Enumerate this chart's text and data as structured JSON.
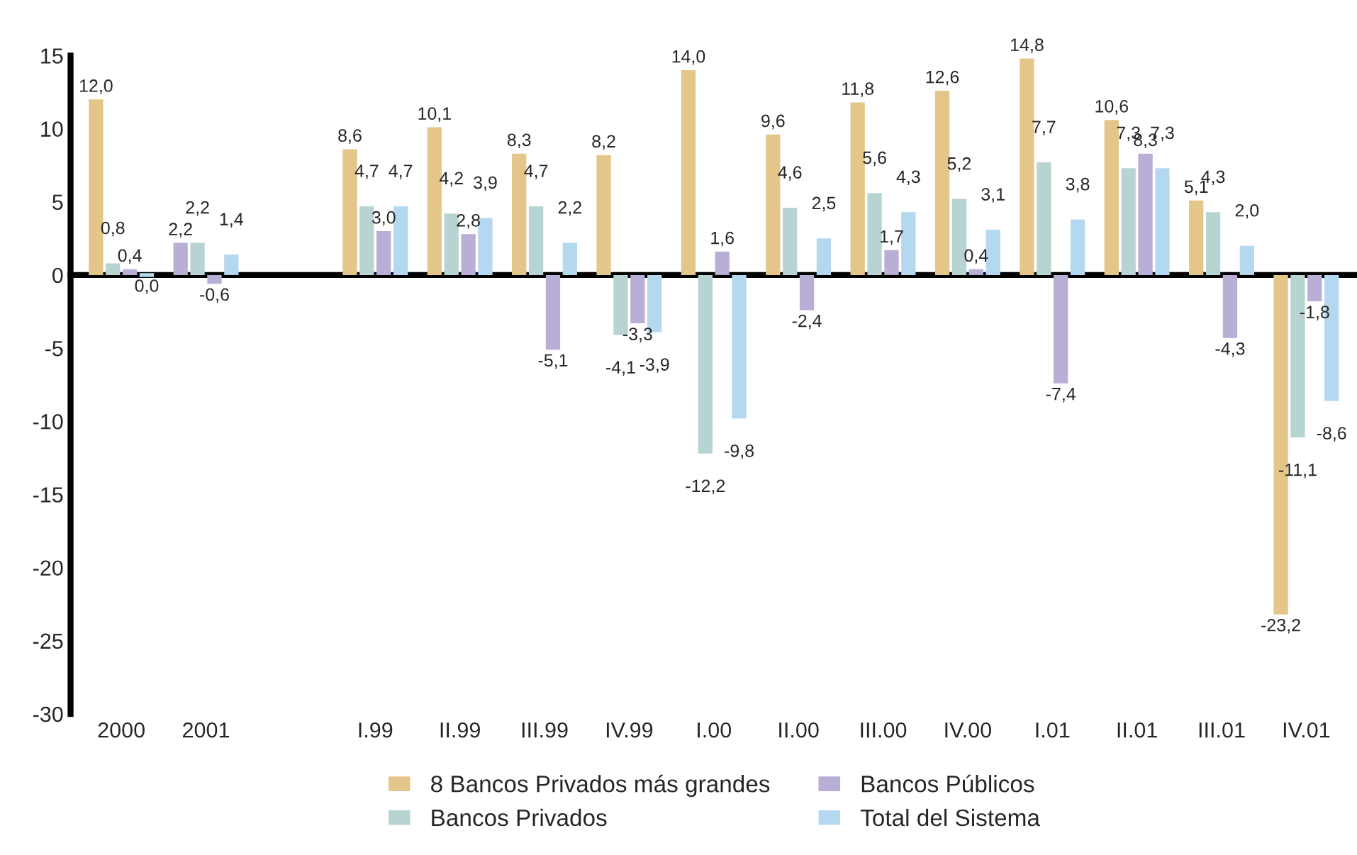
{
  "chart_data": {
    "type": "bar",
    "categories": [
      "2000",
      "2001",
      null,
      "I.99",
      "II.99",
      "III.99",
      "IV.99",
      "I.00",
      "II.00",
      "III.00",
      "IV.00",
      "I.01",
      "II.01",
      "III.01",
      "IV.01"
    ],
    "series": [
      {
        "name": "8 Bancos Privados más grandes",
        "color": "#e5c68a",
        "colors": [
          "#e5c68a",
          "#b8aed6",
          null,
          "#e5c68a",
          "#e5c68a",
          "#e5c68a",
          "#e5c68a",
          "#e5c68a",
          "#e5c68a",
          "#e5c68a",
          "#e5c68a",
          "#e5c68a",
          "#e5c68a",
          "#e5c68a",
          "#e5c68a"
        ],
        "values": [
          12.0,
          2.2,
          null,
          8.6,
          10.1,
          8.3,
          8.2,
          14.0,
          9.6,
          11.8,
          12.6,
          14.8,
          10.6,
          5.1,
          -23.2
        ],
        "value_labels": [
          "12,0",
          "2,2",
          null,
          "8,6",
          "10,1",
          "8,3",
          "8,2",
          "14,0",
          "9,6",
          "11,8",
          "12,6",
          "14,8",
          "10,6",
          "5,1",
          "-23,2"
        ]
      },
      {
        "name": "Bancos Privados",
        "color": "#b8d4d2",
        "values": [
          0.8,
          2.2,
          null,
          4.7,
          4.2,
          4.7,
          -4.1,
          -12.2,
          4.6,
          5.6,
          5.2,
          7.7,
          7.3,
          4.3,
          -11.1
        ],
        "value_labels": [
          "0,8",
          "2,2",
          null,
          "4,7",
          "4,2",
          "4,7",
          "-4,1",
          "-12,2",
          "4,6",
          "5,6",
          "5,2",
          "7,7",
          "7,3",
          "4,3",
          "-11,1"
        ]
      },
      {
        "name": "Bancos Públicos",
        "color": "#b8aed6",
        "values": [
          0.4,
          -0.6,
          null,
          3.0,
          2.8,
          -5.1,
          -3.3,
          1.6,
          -2.4,
          1.7,
          0.4,
          -7.4,
          8.3,
          -4.3,
          -1.8
        ],
        "value_labels": [
          "0,4",
          "-0,6",
          null,
          "3,0",
          "2,8",
          "-5,1",
          "-3,3",
          "1,6",
          "-2,4",
          "1,7",
          "0,4",
          "-7,4",
          "8,3",
          "-4,3",
          "-1,8"
        ]
      },
      {
        "name": "Total del Sistema",
        "color": "#b4d8f0",
        "values": [
          0.0,
          1.4,
          null,
          4.7,
          3.9,
          2.2,
          -3.9,
          -9.8,
          2.5,
          4.3,
          3.1,
          3.8,
          7.3,
          2.0,
          -8.6
        ],
        "value_labels": [
          "0,0",
          "1,4",
          null,
          "4,7",
          "3,9",
          "2,2",
          "-3,9",
          "-9,8",
          "2,5",
          "4,3",
          "3,1",
          "3,8",
          "7,3",
          "2,0",
          "-8,6"
        ]
      }
    ],
    "ylim": [
      -30,
      15
    ],
    "yticks": [
      -30,
      -25,
      -20,
      -15,
      -10,
      -5,
      0,
      5,
      10,
      15
    ],
    "legend": "bottom"
  }
}
